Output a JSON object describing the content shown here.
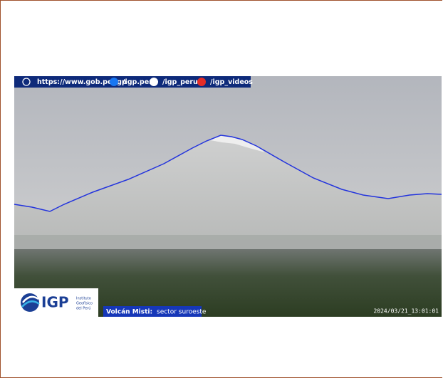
{
  "banner": {
    "website": "https://www.gob.pe/igp",
    "facebook": "/igp.peru",
    "x": "/igp_peru",
    "youtube": "/igp_videos"
  },
  "logo": {
    "acronym": "IGP",
    "line1": "Instituto",
    "line2": "Geofísico",
    "line3": "del Perú"
  },
  "caption": {
    "volcano": "Volcán Misti:",
    "sector": "sector suroeste"
  },
  "timestamp": "2024/03/21_13:01:01"
}
